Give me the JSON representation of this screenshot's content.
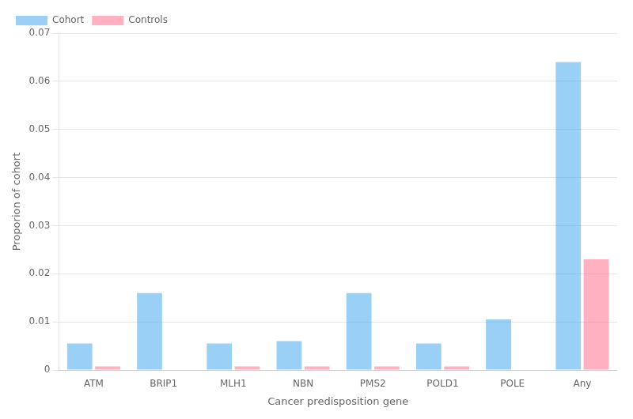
{
  "chart_data": {
    "type": "bar",
    "categories": [
      "ATM",
      "BRIP1",
      "MLH1",
      "NBN",
      "PMS2",
      "POLD1",
      "POLE",
      "Any"
    ],
    "series": [
      {
        "name": "Cohort",
        "values": [
          0.0055,
          0.016,
          0.0055,
          0.006,
          0.016,
          0.0055,
          0.0105,
          0.064
        ]
      },
      {
        "name": "Controls",
        "values": [
          0.00075,
          0.0,
          0.00075,
          0.00075,
          0.00075,
          0.00075,
          0.0,
          0.023
        ]
      }
    ],
    "x_label": "Cancer predisposition gene",
    "y_label": "Proporion of cohort",
    "ylim": [
      0,
      0.07
    ],
    "yticks": [
      0,
      0.01,
      0.02,
      0.03,
      0.04,
      0.05,
      0.06,
      0.07
    ],
    "grid": true,
    "legend": "upper left"
  }
}
